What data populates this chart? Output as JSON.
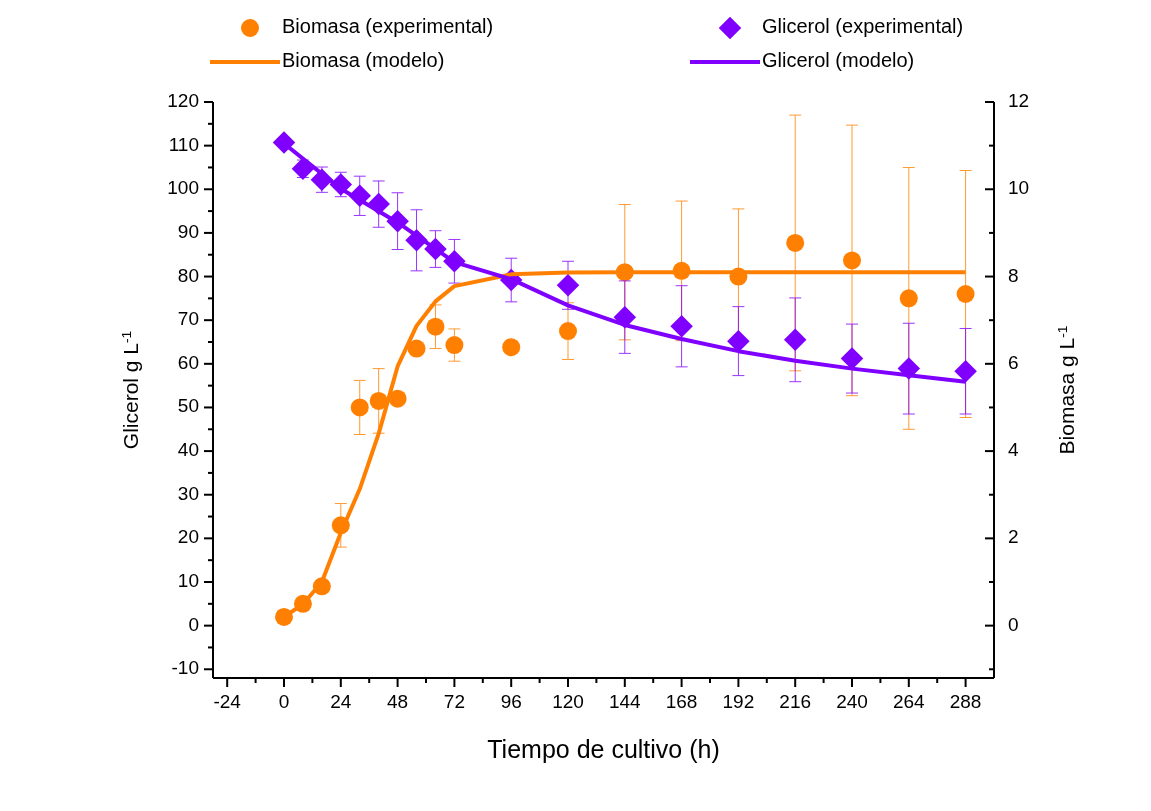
{
  "chart_data": {
    "type": "scatter",
    "xlabel": "Tiempo de cultivo (h)",
    "ylabel": "Glicerol g L$^{-1}$",
    "y2label": "Biomasa g L$^{-1}$",
    "xlim": [
      -30,
      300
    ],
    "ylim": [
      -12,
      120
    ],
    "y2lim": [
      -1.2,
      12
    ],
    "xticks": [
      -24,
      {
        "value": -12,
        "label": null
      },
      0,
      {
        "value": 12,
        "label": null
      },
      24,
      {
        "value": 36,
        "label": null
      },
      48,
      {
        "value": 60,
        "label": null
      },
      72,
      {
        "value": 84,
        "label": null
      },
      96,
      {
        "value": 108,
        "label": null
      },
      120,
      {
        "value": 132,
        "label": null
      },
      144,
      {
        "value": 156,
        "label": null
      },
      168,
      {
        "value": 180,
        "label": null
      },
      192,
      {
        "value": 204,
        "label": null
      },
      216,
      {
        "value": 228,
        "label": null
      },
      240,
      {
        "value": 252,
        "label": null
      },
      264,
      {
        "value": 276,
        "label": null
      },
      288
    ],
    "yticks": [
      -10,
      {
        "value": -5,
        "label": null
      },
      0,
      {
        "value": 5,
        "label": null
      },
      10,
      {
        "value": 15,
        "label": null
      },
      20,
      {
        "value": 25,
        "label": null
      },
      30,
      {
        "value": 35,
        "label": null
      },
      40,
      {
        "value": 45,
        "label": null
      },
      50,
      {
        "value": 55,
        "label": null
      },
      60,
      {
        "value": 65,
        "label": null
      },
      70,
      {
        "value": 75,
        "label": null
      },
      80,
      {
        "value": 85,
        "label": null
      },
      90,
      {
        "value": 95,
        "label": null
      },
      100,
      {
        "value": 105,
        "label": null
      },
      110,
      {
        "value": 115,
        "label": null
      },
      120
    ],
    "y2ticks": [
      {
        "value": -1,
        "label": null
      },
      0,
      {
        "value": 1,
        "label": null
      },
      2,
      {
        "value": 3,
        "label": null
      },
      4,
      {
        "value": 5,
        "label": null
      },
      6,
      {
        "value": 7,
        "label": null
      },
      8,
      {
        "value": 9,
        "label": null
      },
      10,
      {
        "value": 11,
        "label": null
      },
      12
    ],
    "legend": "top",
    "grid": false,
    "series": [
      {
        "name": "Biomasa (experimental)",
        "axis": "y2",
        "marker": "circle",
        "color": "#ff8000",
        "x": [
          0,
          8,
          16,
          24,
          32,
          40,
          48,
          56,
          64,
          72,
          96,
          120,
          144,
          168,
          192,
          216,
          240,
          264,
          288
        ],
        "values": [
          0.2,
          0.5,
          0.9,
          2.3,
          5.0,
          5.15,
          5.2,
          6.35,
          6.85,
          6.43,
          6.38,
          6.75,
          8.1,
          8.13,
          8.0,
          8.77,
          8.37,
          7.5,
          7.6
        ],
        "errors": [
          null,
          null,
          null,
          0.5,
          0.62,
          0.74,
          null,
          null,
          0.5,
          0.37,
          null,
          0.65,
          1.55,
          1.6,
          1.55,
          2.93,
          3.1,
          3.0,
          2.83
        ]
      },
      {
        "name": "Glicerol (experimental)",
        "marker": "diamond",
        "color": "#8000ff",
        "x": [
          0,
          8,
          16,
          24,
          32,
          40,
          48,
          56,
          64,
          72,
          96,
          120,
          144,
          168,
          192,
          216,
          240,
          264,
          288
        ],
        "values": [
          110.7,
          104.7,
          102.2,
          101.1,
          98.5,
          96.6,
          92.7,
          88.3,
          86.3,
          83.5,
          79.2,
          78,
          70.7,
          68.6,
          65.2,
          65.5,
          61.2,
          58.9,
          58.3
        ],
        "errors": [
          null,
          2,
          2.9,
          2.8,
          4.5,
          5.3,
          6.5,
          7,
          4.2,
          5,
          5,
          5.5,
          8.3,
          9.3,
          7.9,
          9.6,
          7.9,
          10.4,
          9.8
        ]
      },
      {
        "name": "Biomasa (modelo)",
        "type": "line",
        "axis": "y2",
        "marker": "none",
        "color": "#ff8000",
        "x": [
          0,
          8,
          16,
          24,
          32,
          40,
          48,
          56,
          64,
          72,
          96,
          120,
          144,
          168,
          192,
          216,
          240,
          264,
          288
        ],
        "values": [
          0.2,
          0.49,
          1.0,
          2.13,
          3.13,
          4.4,
          5.94,
          6.87,
          7.43,
          7.78,
          8.05,
          8.09,
          8.1,
          8.1,
          8.1,
          8.1,
          8.1,
          8.1,
          8.1
        ]
      },
      {
        "name": "Glicerol (modelo)",
        "type": "line",
        "marker": "none",
        "color": "#8000ff",
        "x": [
          0,
          24,
          48,
          72,
          96,
          120,
          144,
          168,
          192,
          216,
          240,
          264,
          288
        ],
        "values": [
          110.5,
          100.1,
          92.4,
          83.3,
          79.4,
          73.4,
          68.9,
          65.7,
          62.9,
          60.7,
          58.9,
          57.4,
          55.9
        ]
      }
    ]
  }
}
